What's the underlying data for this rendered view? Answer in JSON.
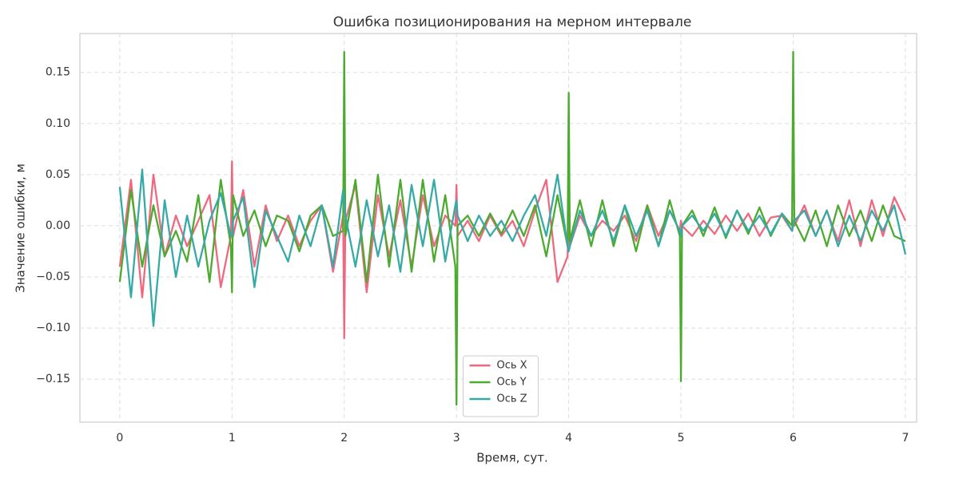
{
  "chart_data": {
    "type": "line",
    "title": "Ошибка позиционирования на мерном интервале",
    "xlabel": "Время, сут.",
    "ylabel": "Значение ошибки, м",
    "x": [
      0,
      0.1,
      0.2,
      0.3,
      0.4,
      0.5,
      0.6,
      0.7,
      0.8,
      0.9,
      0.99,
      1,
      1.01,
      1.1,
      1.2,
      1.3,
      1.4,
      1.5,
      1.6,
      1.7,
      1.8,
      1.9,
      1.99,
      2,
      2.01,
      2.1,
      2.2,
      2.3,
      2.4,
      2.5,
      2.6,
      2.7,
      2.8,
      2.9,
      2.99,
      3,
      3.01,
      3.1,
      3.2,
      3.3,
      3.4,
      3.5,
      3.6,
      3.7,
      3.8,
      3.9,
      3.99,
      4,
      4.01,
      4.1,
      4.2,
      4.3,
      4.4,
      4.5,
      4.6,
      4.7,
      4.8,
      4.9,
      4.99,
      5,
      5.01,
      5.1,
      5.2,
      5.3,
      5.4,
      5.5,
      5.6,
      5.7,
      5.8,
      5.9,
      5.99,
      6,
      6.01,
      6.1,
      6.2,
      6.3,
      6.4,
      6.5,
      6.6,
      6.7,
      6.8,
      6.9,
      7
    ],
    "series": [
      {
        "name": "Ось X",
        "color": "#f0687f",
        "values": [
          -0.04,
          0.045,
          -0.07,
          0.05,
          -0.03,
          0.01,
          -0.02,
          0.005,
          0.03,
          -0.06,
          -0.01,
          0.063,
          -0.01,
          0.035,
          -0.04,
          0.02,
          -0.015,
          0.01,
          -0.02,
          0.005,
          0.02,
          -0.045,
          0.01,
          -0.11,
          0.005,
          0.04,
          -0.065,
          0.03,
          -0.03,
          0.025,
          -0.04,
          0.03,
          -0.02,
          0.01,
          0,
          0.04,
          -0.01,
          0.005,
          -0.015,
          0.01,
          -0.01,
          0.005,
          -0.02,
          0.015,
          0.045,
          -0.055,
          -0.03,
          0.01,
          -0.02,
          0.01,
          -0.01,
          0.005,
          -0.005,
          0.01,
          -0.015,
          0.02,
          -0.01,
          0.015,
          -0.005,
          0.005,
          0,
          -0.01,
          0.005,
          -0.008,
          0.01,
          -0.005,
          0.012,
          -0.01,
          0.008,
          0.01,
          -0.005,
          0.005,
          0,
          0.02,
          -0.01,
          0.015,
          -0.015,
          0.025,
          -0.02,
          0.025,
          -0.01,
          0.028,
          0.005
        ]
      },
      {
        "name": "Ось Y",
        "color": "#4caa2f",
        "values": [
          -0.055,
          0.035,
          -0.04,
          0.02,
          -0.03,
          -0.005,
          -0.035,
          0.03,
          -0.055,
          0.045,
          -0.02,
          -0.065,
          0.03,
          -0.01,
          0.015,
          -0.02,
          0.01,
          0.005,
          -0.025,
          0.01,
          0.02,
          -0.01,
          -0.005,
          0.17,
          -0.01,
          0.045,
          -0.055,
          0.05,
          -0.04,
          0.045,
          -0.045,
          0.045,
          -0.035,
          0.03,
          -0.04,
          -0.175,
          0,
          0.01,
          -0.01,
          0.012,
          -0.008,
          0.015,
          -0.01,
          0.02,
          -0.03,
          0.03,
          -0.02,
          0.13,
          -0.015,
          0.025,
          -0.02,
          0.025,
          -0.02,
          0.02,
          -0.025,
          0.02,
          -0.02,
          0.025,
          -0.01,
          -0.152,
          0,
          0.015,
          -0.01,
          0.018,
          -0.012,
          0.015,
          -0.008,
          0.018,
          -0.01,
          0.012,
          0,
          0.17,
          0.005,
          -0.015,
          0.015,
          -0.02,
          0.02,
          -0.01,
          0.015,
          -0.015,
          0.02,
          -0.01,
          -0.015
        ]
      },
      {
        "name": "Ось Z",
        "color": "#36aaa6",
        "values": [
          0.038,
          -0.07,
          0.055,
          -0.098,
          0.025,
          -0.05,
          0.01,
          -0.04,
          0.005,
          0.032,
          -0.01,
          -0.01,
          0.005,
          0.028,
          -0.06,
          0.015,
          -0.01,
          -0.035,
          0.01,
          -0.02,
          0.02,
          -0.04,
          0.035,
          0.02,
          0.01,
          -0.04,
          0.025,
          -0.03,
          0.02,
          -0.045,
          0.04,
          -0.02,
          0.045,
          -0.035,
          0.02,
          0.025,
          0.01,
          -0.015,
          0.01,
          -0.01,
          0.005,
          -0.015,
          0.01,
          0.03,
          -0.01,
          0.05,
          -0.02,
          -0.025,
          -0.02,
          0.015,
          -0.01,
          0.015,
          -0.015,
          0.02,
          -0.01,
          0.015,
          -0.02,
          0.015,
          -0.005,
          -0.01,
          0,
          0.01,
          -0.005,
          0.012,
          -0.01,
          0.015,
          -0.005,
          0.01,
          -0.008,
          0.012,
          -0.005,
          0,
          0.005,
          0.015,
          -0.01,
          0.015,
          -0.02,
          0.01,
          -0.015,
          0.015,
          -0.005,
          0.02,
          -0.028
        ]
      }
    ],
    "xlim": [
      -0.355,
      7.1
    ],
    "ylim": [
      -0.192,
      0.188
    ],
    "xticks": [
      0,
      1,
      2,
      3,
      4,
      5,
      6,
      7
    ],
    "yticks": [
      {
        "value": -0.15,
        "label": "−0.15"
      },
      {
        "value": -0.1,
        "label": "−0.10"
      },
      {
        "value": -0.05,
        "label": "−0.05"
      },
      {
        "value": 0,
        "label": "0.00"
      },
      0.05,
      {
        "value": 0.1,
        "label": "0.10"
      },
      0.15
    ],
    "grid": true,
    "legend": "lower center"
  }
}
